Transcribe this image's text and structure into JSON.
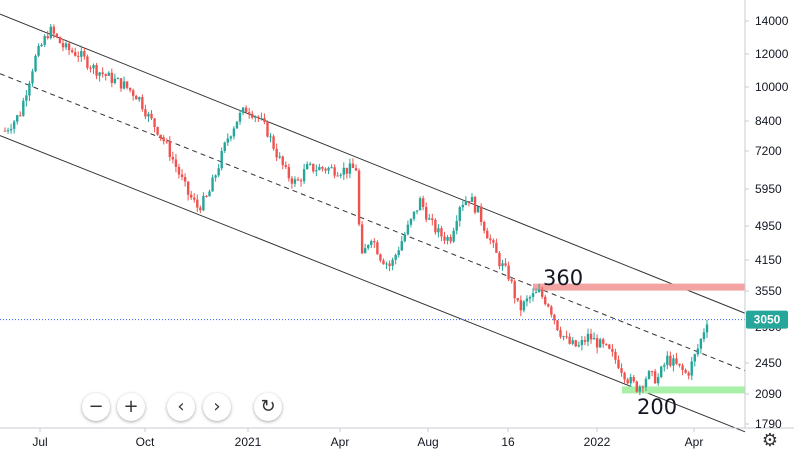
{
  "chart_data": {
    "type": "candlestick",
    "title": "",
    "x_tick_labels": [
      "Jul",
      "Oct",
      "2021",
      "Apr",
      "Aug",
      "16",
      "2022",
      "Apr"
    ],
    "y_tick_labels": [
      "14000",
      "12000",
      "10000",
      "8400",
      "7200",
      "5950",
      "4950",
      "4150",
      "3550",
      "2950",
      "2450",
      "2090",
      "1790"
    ],
    "y_scale": "log",
    "ylim": [
      1790,
      14900
    ],
    "last_price": "3050",
    "price_path": [
      [
        0,
        8000
      ],
      [
        3,
        8700
      ],
      [
        6,
        11500
      ],
      [
        9,
        13400
      ],
      [
        12,
        12200
      ],
      [
        15,
        11800
      ],
      [
        18,
        11000
      ],
      [
        21,
        10500
      ],
      [
        24,
        10100
      ],
      [
        27,
        9500
      ],
      [
        29,
        8600
      ],
      [
        31,
        8000
      ],
      [
        33,
        7300
      ],
      [
        35,
        6500
      ],
      [
        37,
        5800
      ],
      [
        39,
        5400
      ],
      [
        41,
        5700
      ],
      [
        43,
        6600
      ],
      [
        45,
        7700
      ],
      [
        47,
        8500
      ],
      [
        49,
        9000
      ],
      [
        51,
        8600
      ],
      [
        53,
        8000
      ],
      [
        55,
        7100
      ],
      [
        57,
        6400
      ],
      [
        59,
        6100
      ],
      [
        61,
        6600
      ],
      [
        63,
        6600
      ],
      [
        65,
        6600
      ],
      [
        67,
        6550
      ],
      [
        69,
        6550
      ],
      [
        71,
        6600
      ],
      [
        72,
        4100
      ],
      [
        74,
        4700
      ],
      [
        76,
        4200
      ],
      [
        78,
        4000
      ],
      [
        80,
        4500
      ],
      [
        82,
        5000
      ],
      [
        84,
        5600
      ],
      [
        86,
        5000
      ],
      [
        88,
        4700
      ],
      [
        90,
        4600
      ],
      [
        92,
        5500
      ],
      [
        94,
        5700
      ],
      [
        96,
        5200
      ],
      [
        98,
        4600
      ],
      [
        100,
        4100
      ],
      [
        102,
        3800
      ],
      [
        104,
        3200
      ],
      [
        106,
        3400
      ],
      [
        108,
        3500
      ],
      [
        110,
        3300
      ],
      [
        112,
        2900
      ],
      [
        114,
        2700
      ],
      [
        116,
        2650
      ],
      [
        118,
        2800
      ],
      [
        120,
        2700
      ],
      [
        122,
        2600
      ],
      [
        124,
        2450
      ],
      [
        126,
        2250
      ],
      [
        128,
        2150
      ],
      [
        130,
        2300
      ],
      [
        132,
        2250
      ],
      [
        134,
        2500
      ],
      [
        136,
        2400
      ],
      [
        138,
        2300
      ],
      [
        140,
        2600
      ],
      [
        141,
        2800
      ],
      [
        142,
        3050
      ]
    ],
    "channel_upper": [
      [
        1790,
        14000
      ],
      [
        1790,
        3150
      ]
    ],
    "channel_mid": [
      [
        1790,
        10600
      ],
      [
        1790,
        2350
      ]
    ],
    "channel_lower": [
      [
        1790,
        7700
      ],
      [
        1790,
        1750
      ]
    ],
    "horizontal_levels": [
      {
        "label": "360",
        "value": 3600,
        "color": "#f4a3a3"
      },
      {
        "label": "200",
        "value": 2130,
        "color": "#a8f0a8"
      }
    ],
    "colors": {
      "up": "#26a69a",
      "down": "#ef5350",
      "price_badge": "#26a69a",
      "price_line": "#2962ff"
    },
    "grid": true
  },
  "controls": {
    "zoom_out": "−",
    "zoom_in": "+",
    "scroll_left": "‹",
    "scroll_right": "›",
    "reset": "↻",
    "settings": "⚙"
  }
}
